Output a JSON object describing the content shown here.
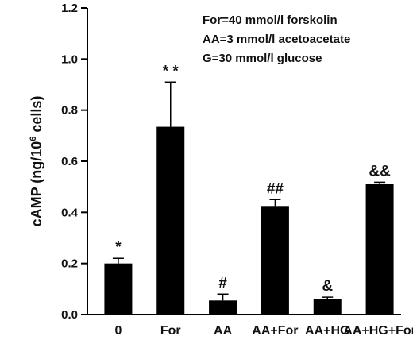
{
  "chart_data": {
    "type": "bar",
    "categories": [
      "0",
      "For",
      "AA",
      "AA+For",
      "AA+HG",
      "AA+HG+For"
    ],
    "values": [
      0.2,
      0.735,
      0.055,
      0.425,
      0.06,
      0.51
    ],
    "errors": [
      0.02,
      0.175,
      0.025,
      0.025,
      0.008,
      0.008
    ],
    "significance": [
      "*",
      "* *",
      "#",
      "##",
      "&",
      "&&"
    ],
    "ylabel": {
      "main": "cAMP (ng/10",
      "sup": "6",
      "tail": " cells)"
    },
    "ylim": [
      0,
      1.2
    ],
    "yticks": [
      "0.0",
      "0.2",
      "0.4",
      "0.6",
      "0.8",
      "1.0",
      "1.2"
    ],
    "ytick_values": [
      0,
      0.2,
      0.4,
      0.6,
      0.8,
      1.0,
      1.2
    ],
    "annotations": [
      "For=40 mmol/l forskolin",
      "AA=3 mmol/l acetoacetate",
      "G=30 mmol/l glucose"
    ],
    "bar_color": "#000000",
    "grid": false
  }
}
